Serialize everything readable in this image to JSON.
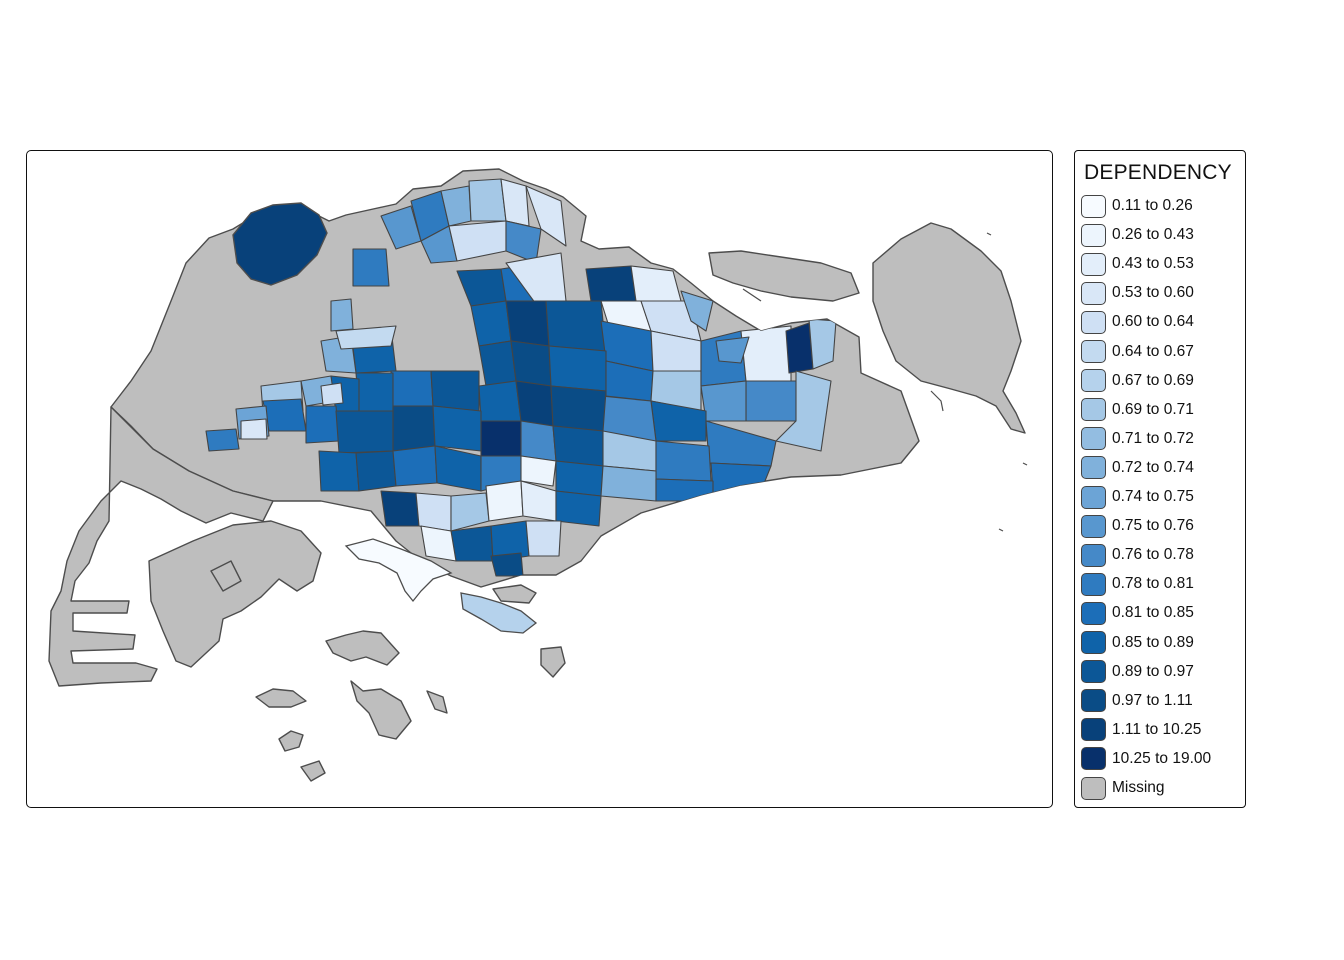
{
  "map": {
    "missing_color": "#bebebe",
    "border_color": "#4d4d4d",
    "background": "#ffffff"
  },
  "legend": {
    "title": "DEPENDENCY",
    "items": [
      {
        "label": "0.11 to 0.26",
        "color": "#f7fbff"
      },
      {
        "label": "0.26 to 0.43",
        "color": "#edf5fd"
      },
      {
        "label": "0.43 to 0.53",
        "color": "#e3eefa"
      },
      {
        "label": "0.53 to 0.60",
        "color": "#d9e7f7"
      },
      {
        "label": "0.60 to 0.64",
        "color": "#cfe0f4"
      },
      {
        "label": "0.64 to 0.67",
        "color": "#c3daf0"
      },
      {
        "label": "0.67 to 0.69",
        "color": "#b5d2ec"
      },
      {
        "label": "0.69 to 0.71",
        "color": "#a5c8e6"
      },
      {
        "label": "0.71 to 0.72",
        "color": "#93bde1"
      },
      {
        "label": "0.72 to 0.74",
        "color": "#80b1db"
      },
      {
        "label": "0.74 to 0.75",
        "color": "#6ca4d6"
      },
      {
        "label": "0.75 to 0.76",
        "color": "#5897cf"
      },
      {
        "label": "0.76 to 0.78",
        "color": "#4589c8"
      },
      {
        "label": "0.78 to 0.81",
        "color": "#2f7bc0"
      },
      {
        "label": "0.81 to 0.85",
        "color": "#1c6eb8"
      },
      {
        "label": "0.85 to 0.89",
        "color": "#0f63a9"
      },
      {
        "label": "0.89 to 0.97",
        "color": "#0c5797"
      },
      {
        "label": "0.97 to 1.11",
        "color": "#0a4c86"
      },
      {
        "label": "1.11 to 10.25",
        "color": "#08417a"
      },
      {
        "label": "10.25 to 19.00",
        "color": "#08306b"
      },
      {
        "label": "Missing",
        "color": "#bebebe"
      }
    ]
  }
}
